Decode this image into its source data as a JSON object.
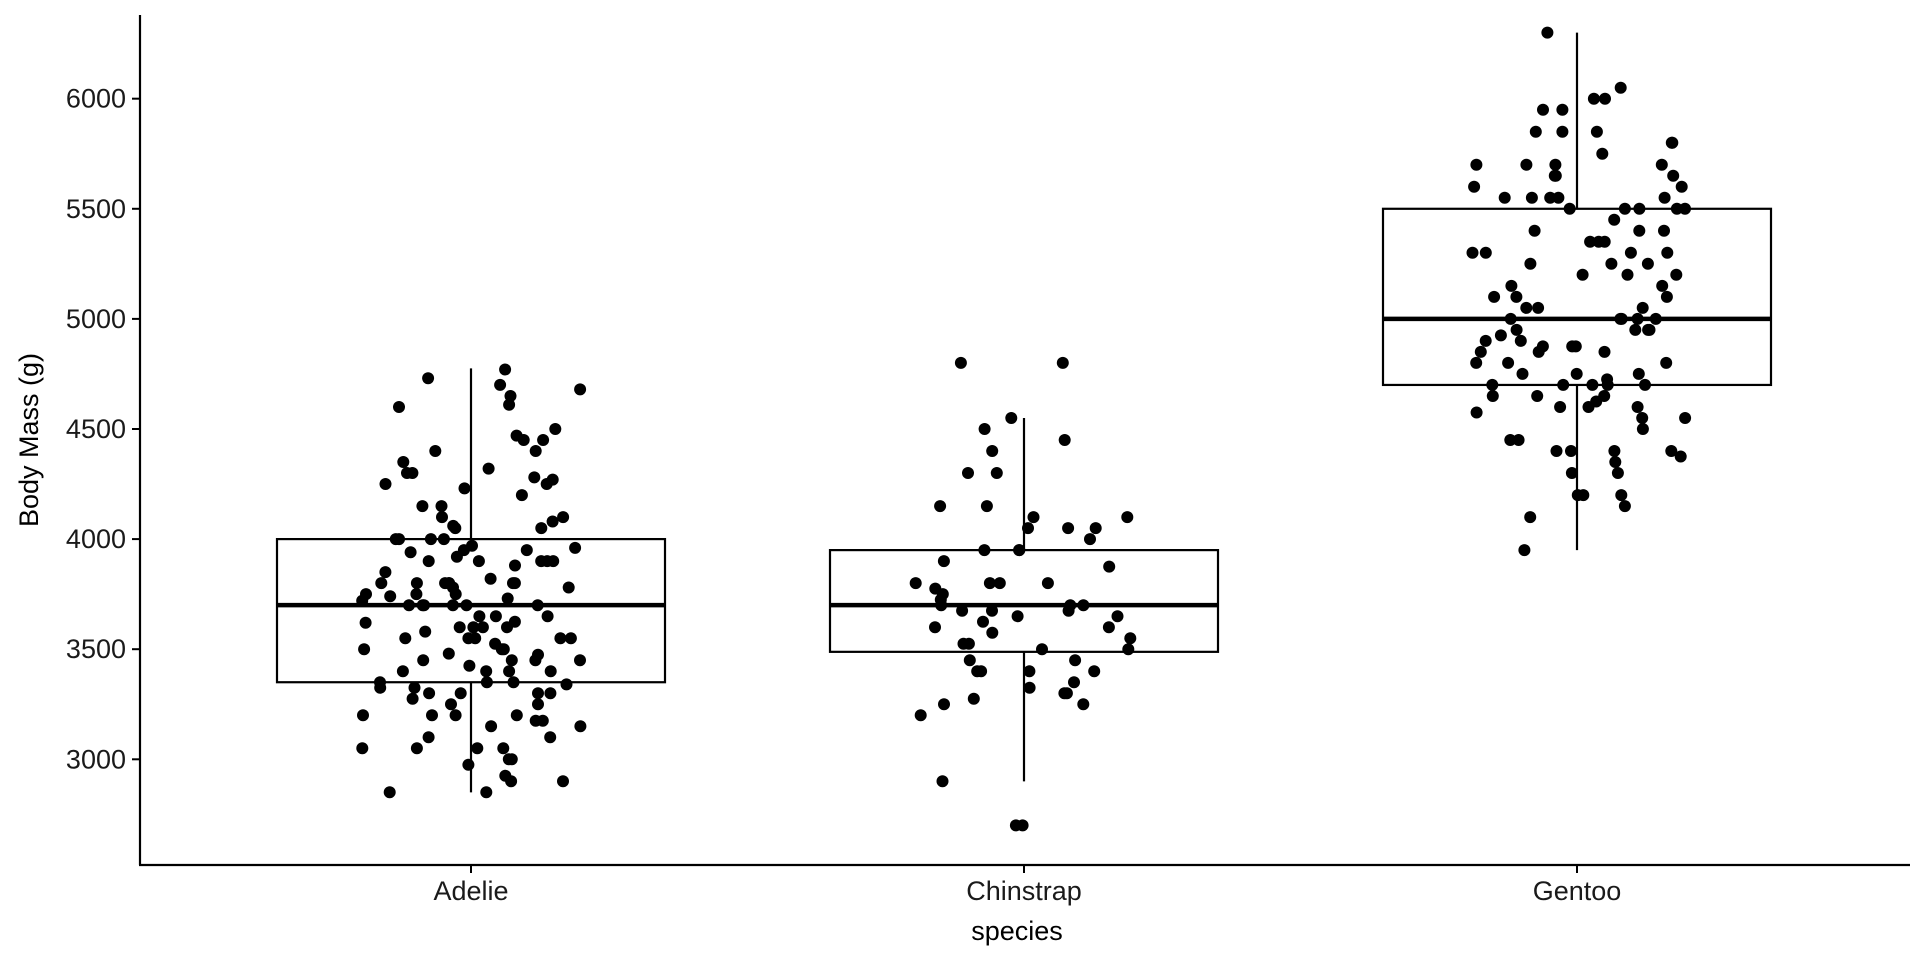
{
  "chart_data": {
    "type": "box",
    "title": "",
    "xlabel": "species",
    "ylabel": "Body Mass (g)",
    "ylim": [
      2520,
      6380
    ],
    "yticks": [
      3000,
      3500,
      4000,
      4500,
      5000,
      5500,
      6000
    ],
    "categories": [
      "Adelie",
      "Chinstrap",
      "Gentoo"
    ],
    "grid": false,
    "legend": "none",
    "colors": {
      "axis": "#000000",
      "point": "#000000",
      "box_fill": "#ffffff"
    },
    "boxes": [
      {
        "category": "Adelie",
        "lower_whisker": 2850,
        "q1": 3350,
        "median": 3700,
        "q3": 4000,
        "upper_whisker": 4775
      },
      {
        "category": "Chinstrap",
        "lower_whisker": 2900,
        "q1": 3488,
        "median": 3700,
        "q3": 3950,
        "upper_whisker": 4550
      },
      {
        "category": "Gentoo",
        "lower_whisker": 3950,
        "q1": 4700,
        "median": 5000,
        "q3": 5500,
        "upper_whisker": 6300
      }
    ],
    "points": [
      {
        "category": "Adelie",
        "values": [
          4770,
          4730,
          4700,
          4680,
          4650,
          4610,
          4600,
          4500,
          4470,
          4450,
          4450,
          4400,
          4400,
          4350,
          4320,
          4300,
          4300,
          4280,
          4270,
          4250,
          4250,
          4230,
          4200,
          4150,
          4150,
          4100,
          4100,
          4080,
          4060,
          4050,
          4050,
          4000,
          4000,
          4000,
          4000,
          3970,
          3960,
          3950,
          3950,
          3940,
          3920,
          3900,
          3900,
          3900,
          3900,
          3900,
          3880,
          3850,
          3820,
          3800,
          3800,
          3800,
          3800,
          3800,
          3800,
          3800,
          3780,
          3780,
          3750,
          3750,
          3750,
          3740,
          3730,
          3720,
          3700,
          3700,
          3700,
          3700,
          3700,
          3700,
          3650,
          3650,
          3650,
          3625,
          3620,
          3600,
          3600,
          3600,
          3600,
          3580,
          3550,
          3550,
          3550,
          3550,
          3550,
          3525,
          3500,
          3500,
          3500,
          3480,
          3475,
          3450,
          3450,
          3450,
          3450,
          3425,
          3400,
          3400,
          3400,
          3400,
          3350,
          3350,
          3350,
          3340,
          3325,
          3325,
          3300,
          3300,
          3300,
          3300,
          3275,
          3250,
          3250,
          3200,
          3200,
          3200,
          3200,
          3175,
          3175,
          3150,
          3150,
          3100,
          3100,
          3050,
          3050,
          3050,
          3050,
          3000,
          3000,
          2975,
          2925,
          2900,
          2900,
          2850,
          2850
        ]
      },
      {
        "category": "Chinstrap",
        "values": [
          4800,
          4800,
          4550,
          4500,
          4450,
          4400,
          4300,
          4300,
          4150,
          4150,
          4100,
          4100,
          4050,
          4050,
          4050,
          4000,
          3950,
          3950,
          3950,
          3900,
          3875,
          3800,
          3800,
          3800,
          3800,
          3775,
          3750,
          3725,
          3700,
          3700,
          3700,
          3675,
          3675,
          3675,
          3650,
          3650,
          3625,
          3600,
          3600,
          3575,
          3550,
          3525,
          3525,
          3500,
          3500,
          3450,
          3450,
          3400,
          3400,
          3400,
          3400,
          3350,
          3325,
          3300,
          3300,
          3275,
          3250,
          3250,
          3200,
          2900,
          2700,
          2700
        ]
      },
      {
        "category": "Gentoo",
        "values": [
          6300,
          6050,
          6000,
          6000,
          5950,
          5950,
          5850,
          5850,
          5850,
          5800,
          5800,
          5750,
          5700,
          5700,
          5700,
          5700,
          5650,
          5650,
          5650,
          5600,
          5600,
          5550,
          5550,
          5550,
          5550,
          5550,
          5500,
          5500,
          5500,
          5500,
          5500,
          5450,
          5400,
          5400,
          5400,
          5350,
          5350,
          5350,
          5300,
          5300,
          5300,
          5300,
          5250,
          5250,
          5250,
          5200,
          5200,
          5200,
          5150,
          5150,
          5100,
          5100,
          5100,
          5050,
          5050,
          5050,
          5000,
          5000,
          5000,
          5000,
          5000,
          4950,
          4950,
          4950,
          4950,
          4925,
          4900,
          4900,
          4875,
          4875,
          4875,
          4850,
          4850,
          4850,
          4800,
          4800,
          4800,
          4750,
          4750,
          4750,
          4725,
          4700,
          4700,
          4700,
          4700,
          4700,
          4650,
          4650,
          4650,
          4625,
          4600,
          4600,
          4600,
          4575,
          4550,
          4550,
          4500,
          4450,
          4450,
          4400,
          4400,
          4400,
          4400,
          4375,
          4350,
          4300,
          4300,
          4200,
          4200,
          4200,
          4150,
          4100,
          3950
        ]
      }
    ]
  }
}
